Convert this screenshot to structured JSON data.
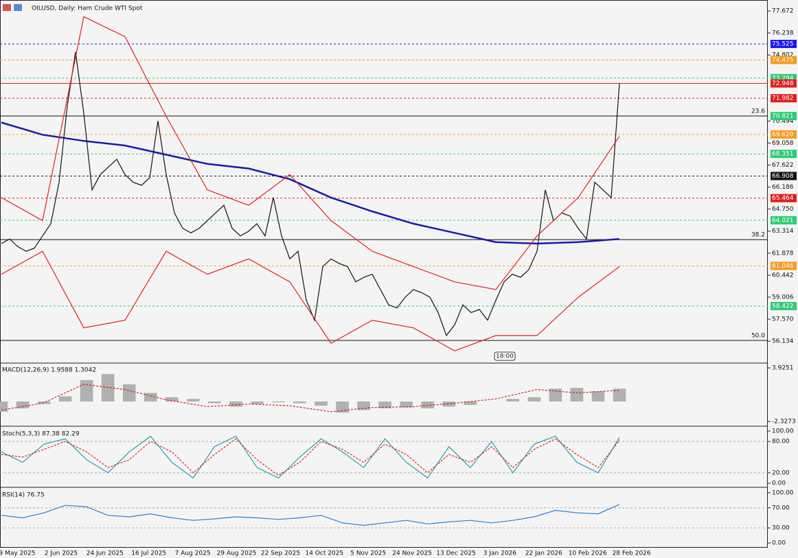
{
  "header": {
    "title": "OILUSD, Daily:  Ham Crude WTI Spot"
  },
  "time_axis": {
    "labels": [
      "9 May 2025",
      "2 Jun 2025",
      "24 Jun 2025",
      "16 Jul 2025",
      "7 Aug 2025",
      "29 Aug 2025",
      "22 Sep 2025",
      "14 Oct 2025",
      "5 Nov 2025",
      "24 Nov 2025",
      "13 Dec 2025",
      "3 Jan 2026",
      "22 Jan 2026",
      "10 Feb 2026",
      "28 Feb 2026"
    ]
  },
  "chart_data": [
    {
      "type": "line",
      "ylim": [
        54.75,
        78.39
      ],
      "yticks": [
        77.672,
        76.238,
        74.802,
        70.494,
        69.058,
        67.622,
        66.186,
        {
          "value": 64.75,
          "label": "64.750"
        },
        63.314,
        61.878,
        60.442,
        59.006,
        {
          "value": 57.57,
          "label": "57.570"
        },
        56.134
      ],
      "series": [
        {
          "color": "#111111",
          "style": "line",
          "values": [
            62.5,
            62.8,
            62.3,
            62.0,
            62.2,
            63.0,
            63.8,
            66.5,
            71.5,
            75.0,
            71.0,
            66.0,
            67.0,
            67.5,
            68.0,
            67.0,
            66.5,
            66.3,
            66.8,
            70.5,
            67.0,
            64.5,
            63.5,
            63.2,
            63.5,
            64.0,
            64.5,
            65.0,
            63.5,
            63.0,
            63.3,
            63.8,
            63.0,
            65.5,
            63.0,
            61.5,
            62.0,
            58.8,
            57.5,
            61.0,
            61.5,
            61.2,
            61.0,
            60.0,
            60.3,
            60.5,
            59.5,
            58.5,
            58.3,
            59.0,
            59.5,
            59.3,
            59.0,
            58.0,
            56.5,
            57.2,
            58.5,
            58.0,
            58.2,
            57.5,
            58.8,
            60.0,
            60.5,
            60.3,
            60.8,
            62.0,
            66.0,
            64.0,
            64.5,
            64.3,
            63.5,
            62.8,
            66.5,
            66.0,
            65.5,
            72.95
          ]
        },
        {
          "color": "#1a1aa8",
          "style": "line",
          "width": 2.5,
          "values": [
            70.4,
            69.6,
            69.2,
            68.9,
            68.3,
            67.7,
            67.4,
            66.7,
            65.5,
            64.6,
            63.8,
            63.2,
            62.6,
            62.5,
            62.6,
            62.8
          ]
        },
        {
          "color": "#e02020",
          "style": "line",
          "values": [
            65.5,
            64.0,
            77.3,
            76.0,
            70.8,
            66.0,
            65.0,
            67.0,
            64.0,
            62.0,
            61.0,
            60.0,
            59.5,
            63.0,
            65.5,
            69.5
          ]
        },
        {
          "color": "#e02020",
          "style": "line",
          "values": [
            60.5,
            62.0,
            57.0,
            57.5,
            62.0,
            60.5,
            61.5,
            60.0,
            56.0,
            57.5,
            57.0,
            55.5,
            56.5,
            56.5,
            59.0,
            61.0
          ]
        }
      ],
      "levels": [
        {
          "value": 75.525,
          "color": "#1a1aee",
          "dash": true
        },
        {
          "value": 74.475,
          "color": "#f59a23",
          "dash": true
        },
        {
          "value": 73.294,
          "color": "#2ecc71",
          "dash": true
        },
        {
          "value": 72.948,
          "color": "#e02020",
          "dash": false
        },
        {
          "value": 71.982,
          "color": "#e02020",
          "dash": true
        },
        {
          "value": 70.821,
          "color": "#2ecc71",
          "dash": true
        },
        {
          "value": {
            "value": 69.62,
            "label": "69.620"
          },
          "color": "#f59a23",
          "dash": true
        },
        {
          "value": 68.351,
          "color": "#2ecc71",
          "dash": true
        },
        {
          "value": 66.908,
          "color": "#111111",
          "dash": true
        },
        {
          "value": 65.464,
          "color": "#e02020",
          "dash": true
        },
        {
          "value": 64.021,
          "color": "#2ecc71",
          "dash": true
        },
        {
          "value": 61.046,
          "color": "#f59a23",
          "dash": true
        },
        {
          "value": 58.422,
          "color": "#2ecc71",
          "dash": true
        }
      ],
      "fib_levels": [
        {
          "label": "23.6",
          "value": 70.821
        },
        {
          "label": "38.2",
          "value": 62.76
        },
        {
          "label": "50.0",
          "value": 56.18
        }
      ],
      "annotation": "18:00"
    },
    {
      "type": "macd",
      "title": "MACD(12,26,9) 1.9588 1.3042",
      "ylim": [
        -2.808,
        4.406
      ],
      "yticks": [
        3.9251,
        -2.3273
      ],
      "series": [
        {
          "color": "#b0b0b0",
          "style": "bar",
          "values": [
            -1.2,
            -0.8,
            -0.3,
            0.6,
            2.5,
            3.2,
            2.0,
            1.0,
            0.5,
            0.3,
            -0.2,
            -0.6,
            -0.3,
            -0.1,
            -0.2,
            -0.5,
            -1.3,
            -1.0,
            -0.8,
            -0.7,
            -0.8,
            -0.6,
            -0.4,
            0.0,
            0.3,
            0.5,
            1.5,
            1.6,
            1.2,
            1.5
          ]
        },
        {
          "color": "#e02020",
          "style": "dash",
          "values": [
            -1.0,
            -0.2,
            2.0,
            1.4,
            0.2,
            -0.6,
            -0.3,
            -0.5,
            -1.2,
            -0.7,
            -0.6,
            -0.2,
            0.3,
            1.4,
            1.0,
            1.3
          ]
        }
      ]
    },
    {
      "type": "stoch",
      "title": "Stoch(5,3,3) 87.38 82.29",
      "ylim": [
        -6.5,
        106.5
      ],
      "yticks": [
        {
          "value": 100,
          "label": "100.00"
        },
        {
          "value": 80,
          "label": "80.00"
        },
        {
          "value": 20,
          "label": "20.00"
        },
        {
          "value": 0,
          "label": "0.00"
        }
      ],
      "series": [
        {
          "color": "#20a0b0",
          "style": "line",
          "values": [
            60,
            40,
            75,
            85,
            45,
            20,
            60,
            90,
            40,
            10,
            70,
            90,
            30,
            10,
            50,
            85,
            60,
            30,
            85,
            40,
            10,
            70,
            30,
            80,
            20,
            75,
            90,
            40,
            20,
            87.38
          ]
        },
        {
          "color": "#e02020",
          "style": "dash",
          "values": [
            55,
            50,
            65,
            80,
            60,
            30,
            45,
            80,
            60,
            20,
            55,
            85,
            45,
            15,
            40,
            80,
            65,
            40,
            75,
            55,
            20,
            55,
            40,
            70,
            30,
            65,
            85,
            55,
            30,
            82.29
          ]
        }
      ]
    },
    {
      "type": "rsi",
      "title": "RSI(14) 76.75",
      "ylim": [
        -8.1,
        108.1
      ],
      "yticks": [
        {
          "value": 100,
          "label": "100.00"
        },
        {
          "value": 70,
          "label": "70.00"
        },
        {
          "value": 30,
          "label": "30.00"
        },
        {
          "value": 0,
          "label": "0.00"
        }
      ],
      "series": [
        {
          "color": "#2a7fd4",
          "style": "line",
          "values": [
            55,
            50,
            60,
            75,
            72,
            55,
            52,
            58,
            50,
            45,
            48,
            52,
            50,
            47,
            50,
            55,
            40,
            35,
            40,
            45,
            38,
            42,
            45,
            40,
            45,
            52,
            65,
            60,
            58,
            76.75
          ]
        }
      ]
    }
  ]
}
